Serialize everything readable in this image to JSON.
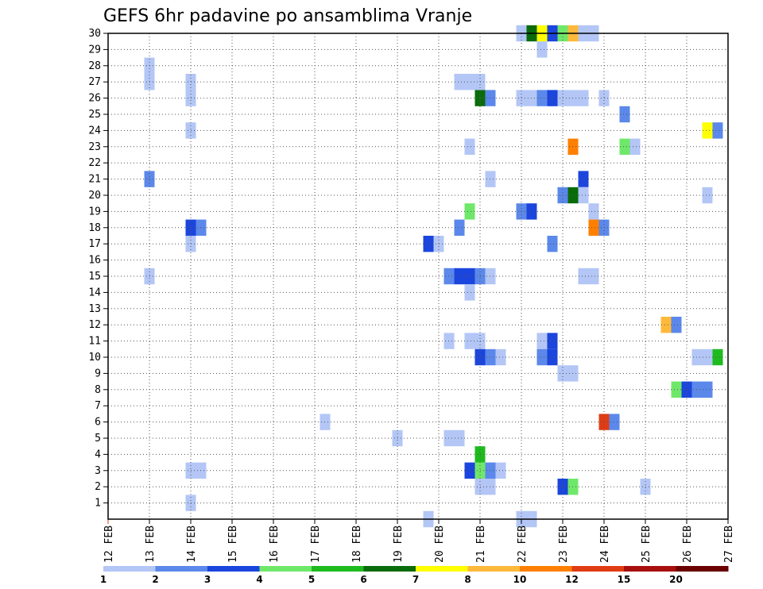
{
  "chart_data": {
    "type": "heatmap",
    "title": "GEFS 6hr padavine po ansamblima Vranje",
    "xlabel": "",
    "ylabel": "",
    "x_tick_labels": [
      "12 FEB",
      "13 FEB",
      "14 FEB",
      "15 FEB",
      "16 FEB",
      "17 FEB",
      "18 FEB",
      "19 FEB",
      "20 FEB",
      "21 FEB",
      "22 FEB",
      "23 FEB",
      "24 FEB",
      "25 FEB",
      "26 FEB",
      "27 FEB"
    ],
    "y_tick_labels": [
      "1",
      "2",
      "3",
      "4",
      "5",
      "6",
      "7",
      "8",
      "9",
      "10",
      "11",
      "12",
      "13",
      "14",
      "15",
      "16",
      "17",
      "18",
      "19",
      "20",
      "21",
      "22",
      "23",
      "24",
      "25",
      "26",
      "27",
      "28",
      "29",
      "30"
    ],
    "xlim": [
      0,
      60
    ],
    "ylim": [
      0,
      30
    ],
    "x_unit": "6-hour steps from 12 FEB 00Z",
    "y_unit": "ensemble member",
    "colorbar": {
      "labels": [
        "1",
        "2",
        "3",
        "4",
        "5",
        "6",
        "7",
        "8",
        "10",
        "12",
        "15",
        "20"
      ],
      "colors": [
        "#b3c6f6",
        "#5b88ea",
        "#1b45dc",
        "#6fe86a",
        "#1ebb1e",
        "#0a6b0a",
        "#ffff00",
        "#ffb93a",
        "#ff7f00",
        "#e03c14",
        "#a80e0e",
        "#6a0000"
      ]
    },
    "cells": [
      {
        "member": 30,
        "t": 40,
        "v": 1.5
      },
      {
        "member": 30,
        "t": 41,
        "v": 6.5
      },
      {
        "member": 30,
        "t": 42,
        "v": 7.5
      },
      {
        "member": 30,
        "t": 43,
        "v": 3.5
      },
      {
        "member": 30,
        "t": 44,
        "v": 4.5
      },
      {
        "member": 30,
        "t": 45,
        "v": 9
      },
      {
        "member": 30,
        "t": 46,
        "v": 1.5
      },
      {
        "member": 30,
        "t": 47,
        "v": 1.5
      },
      {
        "member": 29,
        "t": 42,
        "v": 1.5
      },
      {
        "member": 28,
        "t": 4,
        "v": 1.5
      },
      {
        "member": 27,
        "t": 4,
        "v": 1.5
      },
      {
        "member": 27,
        "t": 8,
        "v": 1.5
      },
      {
        "member": 27,
        "t": 34,
        "v": 1.5
      },
      {
        "member": 27,
        "t": 35,
        "v": 1.5
      },
      {
        "member": 27,
        "t": 36,
        "v": 1.5
      },
      {
        "member": 26,
        "t": 8,
        "v": 1.5
      },
      {
        "member": 26,
        "t": 36,
        "v": 6.5
      },
      {
        "member": 26,
        "t": 37,
        "v": 2.5
      },
      {
        "member": 26,
        "t": 40,
        "v": 1.5
      },
      {
        "member": 26,
        "t": 41,
        "v": 1.5
      },
      {
        "member": 26,
        "t": 42,
        "v": 2.5
      },
      {
        "member": 26,
        "t": 43,
        "v": 3.5
      },
      {
        "member": 26,
        "t": 44,
        "v": 1.5
      },
      {
        "member": 26,
        "t": 45,
        "v": 1.5
      },
      {
        "member": 26,
        "t": 46,
        "v": 1.5
      },
      {
        "member": 26,
        "t": 48,
        "v": 1.5
      },
      {
        "member": 25,
        "t": 50,
        "v": 2.5
      },
      {
        "member": 24,
        "t": 8,
        "v": 1.5
      },
      {
        "member": 24,
        "t": 58,
        "v": 7.5
      },
      {
        "member": 24,
        "t": 59,
        "v": 2.5
      },
      {
        "member": 23,
        "t": 35,
        "v": 1.5
      },
      {
        "member": 23,
        "t": 45,
        "v": 11
      },
      {
        "member": 23,
        "t": 50,
        "v": 4.5
      },
      {
        "member": 23,
        "t": 51,
        "v": 1.5
      },
      {
        "member": 21,
        "t": 4,
        "v": 2.5
      },
      {
        "member": 21,
        "t": 37,
        "v": 1.5
      },
      {
        "member": 21,
        "t": 46,
        "v": 3.5
      },
      {
        "member": 20,
        "t": 44,
        "v": 2.5
      },
      {
        "member": 20,
        "t": 45,
        "v": 6.5
      },
      {
        "member": 20,
        "t": 46,
        "v": 1.5
      },
      {
        "member": 20,
        "t": 58,
        "v": 1.5
      },
      {
        "member": 19,
        "t": 35,
        "v": 4.5
      },
      {
        "member": 19,
        "t": 40,
        "v": 2.5
      },
      {
        "member": 19,
        "t": 41,
        "v": 3.5
      },
      {
        "member": 19,
        "t": 47,
        "v": 1.5
      },
      {
        "member": 18,
        "t": 8,
        "v": 3.5
      },
      {
        "member": 18,
        "t": 9,
        "v": 2.5
      },
      {
        "member": 18,
        "t": 34,
        "v": 2.5
      },
      {
        "member": 18,
        "t": 47,
        "v": 11
      },
      {
        "member": 18,
        "t": 48,
        "v": 2.5
      },
      {
        "member": 17,
        "t": 8,
        "v": 1.5
      },
      {
        "member": 17,
        "t": 31,
        "v": 3.5
      },
      {
        "member": 17,
        "t": 32,
        "v": 1.5
      },
      {
        "member": 17,
        "t": 43,
        "v": 2.5
      },
      {
        "member": 15,
        "t": 4,
        "v": 1.5
      },
      {
        "member": 15,
        "t": 33,
        "v": 2.5
      },
      {
        "member": 15,
        "t": 34,
        "v": 3.5
      },
      {
        "member": 15,
        "t": 35,
        "v": 3.5
      },
      {
        "member": 15,
        "t": 36,
        "v": 2.5
      },
      {
        "member": 15,
        "t": 37,
        "v": 1.5
      },
      {
        "member": 15,
        "t": 46,
        "v": 1.5
      },
      {
        "member": 15,
        "t": 47,
        "v": 1.5
      },
      {
        "member": 14,
        "t": 35,
        "v": 1.5
      },
      {
        "member": 12,
        "t": 54,
        "v": 9
      },
      {
        "member": 12,
        "t": 55,
        "v": 2.5
      },
      {
        "member": 11,
        "t": 33,
        "v": 1.5
      },
      {
        "member": 11,
        "t": 35,
        "v": 1.5
      },
      {
        "member": 11,
        "t": 36,
        "v": 1.5
      },
      {
        "member": 11,
        "t": 42,
        "v": 1.5
      },
      {
        "member": 11,
        "t": 43,
        "v": 3.5
      },
      {
        "member": 10,
        "t": 36,
        "v": 3.5
      },
      {
        "member": 10,
        "t": 37,
        "v": 2.5
      },
      {
        "member": 10,
        "t": 38,
        "v": 1.5
      },
      {
        "member": 10,
        "t": 42,
        "v": 2.5
      },
      {
        "member": 10,
        "t": 43,
        "v": 3.5
      },
      {
        "member": 10,
        "t": 57,
        "v": 1.5
      },
      {
        "member": 10,
        "t": 58,
        "v": 1.5
      },
      {
        "member": 10,
        "t": 59,
        "v": 5.5
      },
      {
        "member": 9,
        "t": 44,
        "v": 1.5
      },
      {
        "member": 9,
        "t": 45,
        "v": 1.5
      },
      {
        "member": 8,
        "t": 55,
        "v": 4.5
      },
      {
        "member": 8,
        "t": 56,
        "v": 3.5
      },
      {
        "member": 8,
        "t": 57,
        "v": 2.5
      },
      {
        "member": 8,
        "t": 58,
        "v": 2.5
      },
      {
        "member": 6,
        "t": 21,
        "v": 1.5
      },
      {
        "member": 6,
        "t": 48,
        "v": 13
      },
      {
        "member": 6,
        "t": 49,
        "v": 2.5
      },
      {
        "member": 5,
        "t": 28,
        "v": 1.5
      },
      {
        "member": 5,
        "t": 33,
        "v": 1.5
      },
      {
        "member": 5,
        "t": 34,
        "v": 1.5
      },
      {
        "member": 4,
        "t": 36,
        "v": 5.5
      },
      {
        "member": 3,
        "t": 8,
        "v": 1.5
      },
      {
        "member": 3,
        "t": 9,
        "v": 1.5
      },
      {
        "member": 3,
        "t": 35,
        "v": 3.5
      },
      {
        "member": 3,
        "t": 36,
        "v": 4.5
      },
      {
        "member": 3,
        "t": 37,
        "v": 2.5
      },
      {
        "member": 3,
        "t": 38,
        "v": 1.5
      },
      {
        "member": 2,
        "t": 36,
        "v": 1.5
      },
      {
        "member": 2,
        "t": 37,
        "v": 1.5
      },
      {
        "member": 2,
        "t": 44,
        "v": 3.5
      },
      {
        "member": 2,
        "t": 45,
        "v": 4.5
      },
      {
        "member": 2,
        "t": 52,
        "v": 1.5
      },
      {
        "member": 1,
        "t": 8,
        "v": 1.5
      },
      {
        "member": 0,
        "t": 31,
        "v": 1.5
      },
      {
        "member": 0,
        "t": 40,
        "v": 1.5
      },
      {
        "member": 0,
        "t": 41,
        "v": 1.5
      }
    ]
  }
}
